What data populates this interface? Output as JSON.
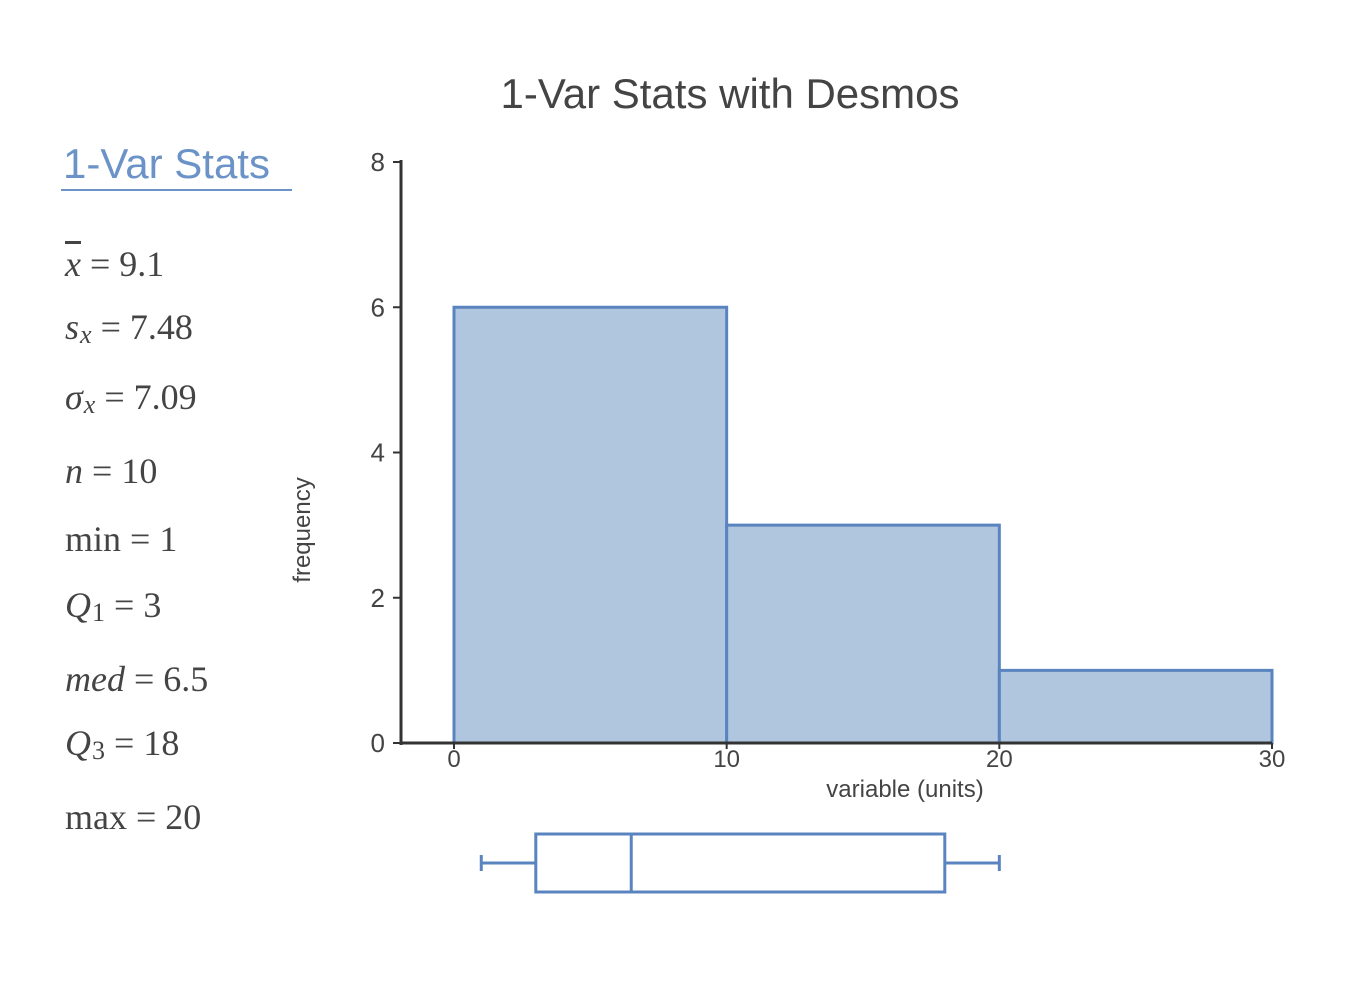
{
  "title": "1-Var Stats with Desmos",
  "stats_panel": {
    "heading": "1-Var Stats",
    "mean": {
      "symbol": "x",
      "value": "9.1"
    },
    "sample_sd": {
      "symbol": "s",
      "sub": "x",
      "value": "7.48"
    },
    "pop_sd": {
      "symbol": "σ",
      "sub": "x",
      "value": "7.09"
    },
    "n": {
      "symbol": "n",
      "value": "10"
    },
    "min": {
      "symbol": "min",
      "value": "1"
    },
    "q1": {
      "symbol": "Q",
      "sub": "1",
      "value": "3"
    },
    "median": {
      "symbol": "med",
      "value": "6.5"
    },
    "q3": {
      "symbol": "Q",
      "sub": "3",
      "value": "18"
    },
    "max": {
      "symbol": "max",
      "value": "20"
    },
    "equals": "="
  },
  "colors": {
    "bar_fill": "#b0c6de",
    "bar_stroke": "#5a84bf",
    "axis": "#333333",
    "text": "#444444",
    "heading": "#6b93c8"
  },
  "chart_data": [
    {
      "type": "histogram",
      "bins": [
        {
          "from": 0,
          "to": 10,
          "count": 6
        },
        {
          "from": 10,
          "to": 20,
          "count": 3
        },
        {
          "from": 20,
          "to": 30,
          "count": 1
        }
      ],
      "xlabel": "variable (units)",
      "ylabel": "frequency",
      "xlim": [
        0,
        30
      ],
      "ylim": [
        0,
        8
      ],
      "xticks": [
        0,
        10,
        20,
        30
      ],
      "yticks": [
        0,
        2,
        4,
        6,
        8
      ],
      "grid": false
    },
    {
      "type": "boxplot",
      "min": 1,
      "q1": 3,
      "median": 6.5,
      "q3": 18,
      "max": 20
    }
  ]
}
